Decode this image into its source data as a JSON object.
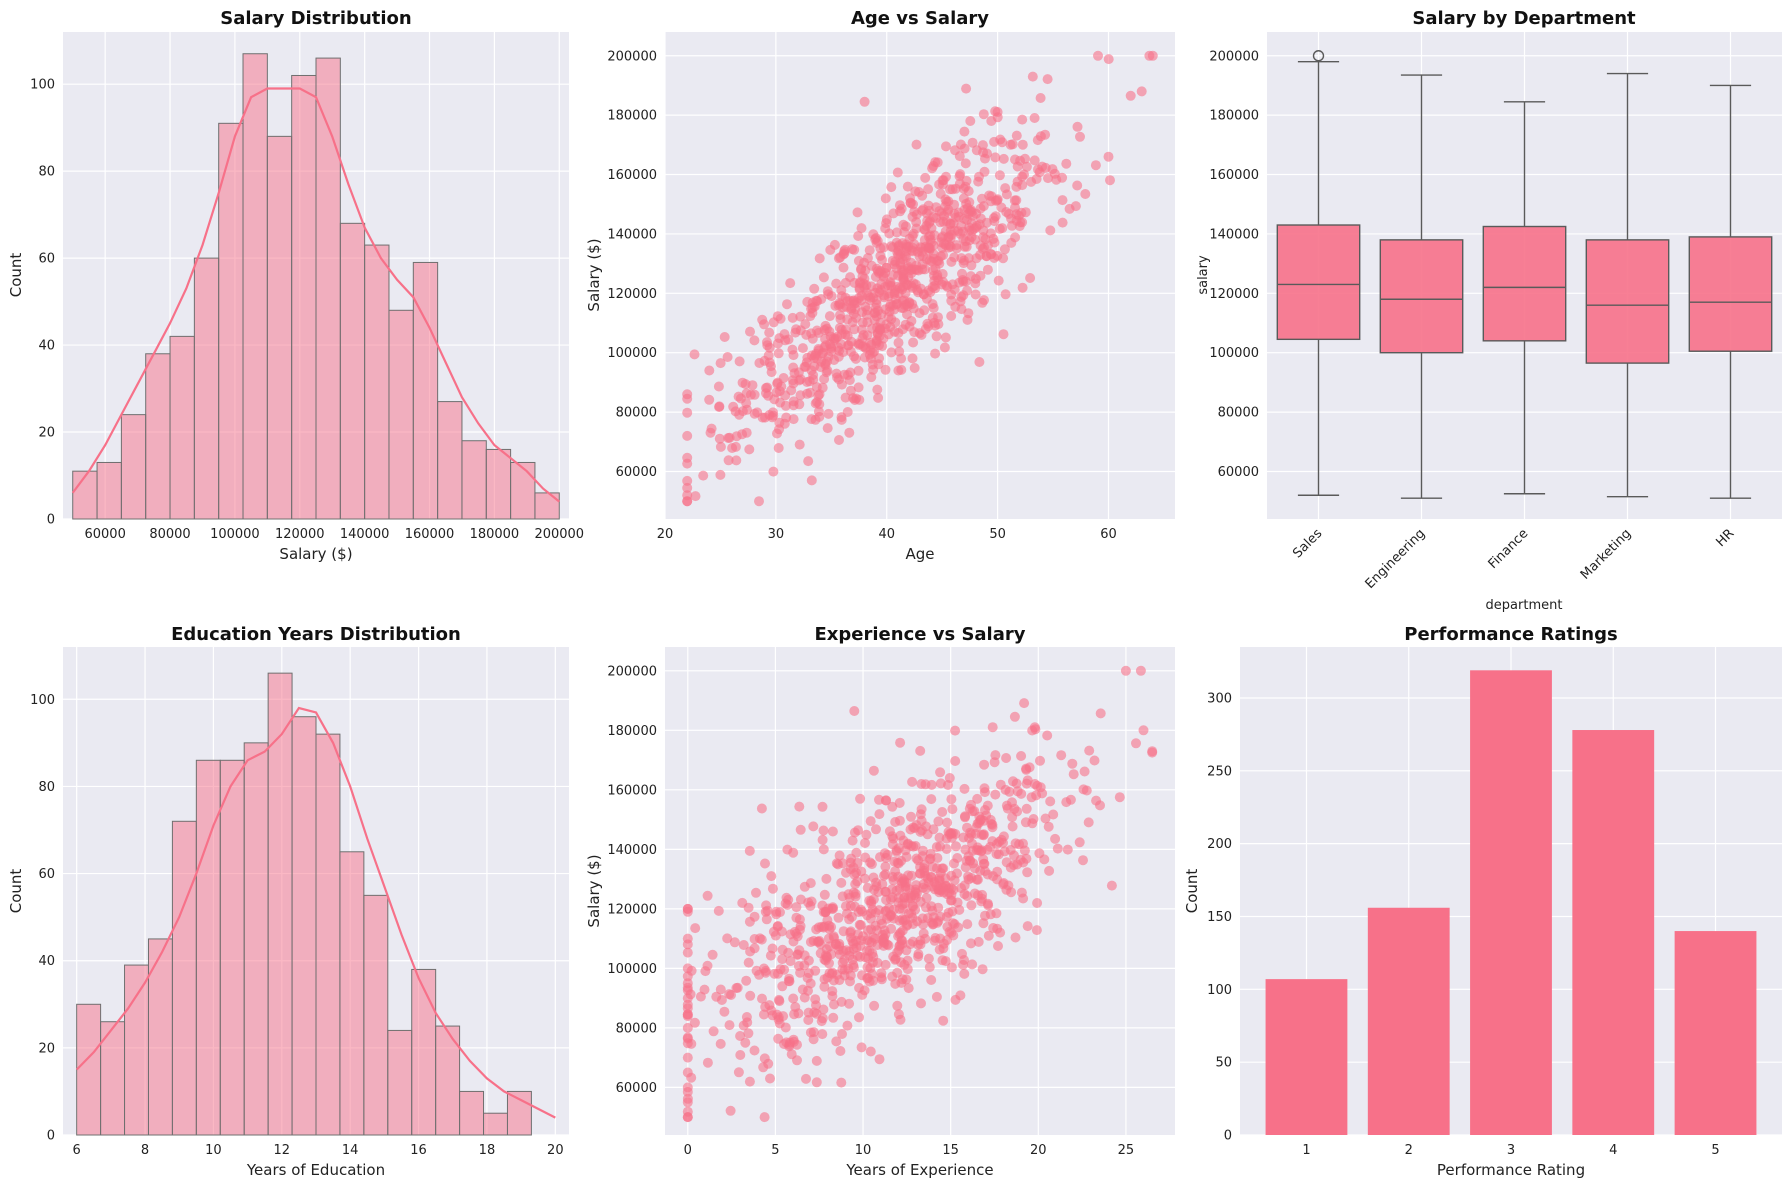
{
  "colors": {
    "accent": "#f77189",
    "plot_bg": "#eaeaf2",
    "grid": "#ffffff",
    "box_line": "#5a5a5a",
    "hist_edge": "#6f6f6f"
  },
  "chart_data": [
    {
      "type": "bar",
      "subtype": "histogram_with_kde",
      "title": "Salary Distribution",
      "xlabel": "Salary ($)",
      "ylabel": "Count",
      "xlim": [
        47000,
        203000
      ],
      "ylim": [
        0,
        112
      ],
      "xticks": [
        60000,
        80000,
        100000,
        120000,
        140000,
        160000,
        180000,
        200000
      ],
      "yticks": [
        0,
        20,
        40,
        60,
        80,
        100
      ],
      "bin_start": 50000,
      "bin_width": 7500,
      "values": [
        11,
        13,
        24,
        38,
        42,
        60,
        91,
        107,
        88,
        102,
        106,
        68,
        63,
        48,
        59,
        27,
        18,
        16,
        13,
        6
      ],
      "kde": [
        [
          50000,
          6
        ],
        [
          55000,
          11
        ],
        [
          60000,
          17
        ],
        [
          65000,
          24
        ],
        [
          70000,
          31
        ],
        [
          75000,
          38
        ],
        [
          80000,
          45
        ],
        [
          85000,
          53
        ],
        [
          90000,
          63
        ],
        [
          95000,
          75
        ],
        [
          100000,
          88
        ],
        [
          105000,
          97
        ],
        [
          110000,
          99
        ],
        [
          115000,
          99
        ],
        [
          120000,
          99
        ],
        [
          125000,
          97
        ],
        [
          130000,
          88
        ],
        [
          135000,
          77
        ],
        [
          140000,
          67
        ],
        [
          145000,
          60
        ],
        [
          150000,
          55
        ],
        [
          155000,
          51
        ],
        [
          160000,
          44
        ],
        [
          165000,
          36
        ],
        [
          170000,
          28
        ],
        [
          175000,
          22
        ],
        [
          180000,
          17
        ],
        [
          185000,
          14
        ],
        [
          190000,
          11
        ],
        [
          195000,
          7
        ],
        [
          200000,
          4
        ]
      ]
    },
    {
      "type": "scatter",
      "title": "Age vs Salary",
      "xlabel": "Age",
      "ylabel": "Salary ($)",
      "xlim": [
        20,
        66
      ],
      "ylim": [
        44000,
        208000
      ],
      "xticks": [
        20,
        30,
        40,
        50,
        60
      ],
      "yticks": [
        60000,
        80000,
        100000,
        120000,
        140000,
        160000,
        180000,
        200000
      ],
      "n_points": 900,
      "x_mean": 40,
      "x_sd": 7.5,
      "x_min": 22,
      "x_max": 64,
      "y_intercept": 4000,
      "y_slope": 2900,
      "y_noise_sd": 15000,
      "y_min": 50000,
      "y_max": 200000,
      "extra_points": [
        [
          22,
          52000
        ],
        [
          22,
          72000
        ],
        [
          22,
          84500
        ],
        [
          24,
          94000
        ],
        [
          38,
          184500
        ],
        [
          62,
          186500
        ],
        [
          63,
          188000
        ],
        [
          64,
          200000
        ],
        [
          60,
          166000
        ]
      ]
    },
    {
      "type": "box",
      "title": "Salary by Department",
      "xlabel": "department",
      "ylabel": "salary",
      "ylim": [
        44000,
        208000
      ],
      "yticks": [
        60000,
        80000,
        100000,
        120000,
        140000,
        160000,
        180000,
        200000
      ],
      "categories": [
        "Sales",
        "Engineering",
        "Finance",
        "Marketing",
        "HR"
      ],
      "boxes": [
        {
          "whisker_low": 52000,
          "q1": 104500,
          "median": 123000,
          "q3": 143000,
          "whisker_high": 198000,
          "outliers": [
            200000
          ]
        },
        {
          "whisker_low": 51000,
          "q1": 100000,
          "median": 118000,
          "q3": 138000,
          "whisker_high": 193500,
          "outliers": []
        },
        {
          "whisker_low": 52500,
          "q1": 104000,
          "median": 122000,
          "q3": 142500,
          "whisker_high": 184500,
          "outliers": []
        },
        {
          "whisker_low": 51500,
          "q1": 96500,
          "median": 116000,
          "q3": 138000,
          "whisker_high": 194000,
          "outliers": []
        },
        {
          "whisker_low": 51000,
          "q1": 100500,
          "median": 117000,
          "q3": 139000,
          "whisker_high": 190000,
          "outliers": []
        }
      ]
    },
    {
      "type": "bar",
      "subtype": "histogram_with_kde",
      "title": "Education Years Distribution",
      "xlabel": "Years of Education",
      "ylabel": "Count",
      "xlim": [
        5.6,
        20.4
      ],
      "ylim": [
        0,
        112
      ],
      "xticks": [
        6,
        8,
        10,
        12,
        14,
        16,
        18,
        20
      ],
      "yticks": [
        0,
        20,
        40,
        60,
        80,
        100
      ],
      "bin_start": 6,
      "bin_width": 0.7,
      "values": [
        30,
        26,
        39,
        45,
        72,
        86,
        86,
        90,
        106,
        96,
        92,
        65,
        55,
        24,
        38,
        25,
        10,
        5,
        10
      ],
      "kde": [
        [
          6,
          15
        ],
        [
          6.5,
          19
        ],
        [
          7,
          24
        ],
        [
          7.5,
          29
        ],
        [
          8,
          35
        ],
        [
          8.5,
          42
        ],
        [
          9,
          50
        ],
        [
          9.5,
          60
        ],
        [
          10,
          71
        ],
        [
          10.5,
          80
        ],
        [
          11,
          86
        ],
        [
          11.5,
          88
        ],
        [
          12,
          92
        ],
        [
          12.5,
          98
        ],
        [
          13,
          97
        ],
        [
          13.5,
          90
        ],
        [
          14,
          80
        ],
        [
          14.5,
          68
        ],
        [
          15,
          57
        ],
        [
          15.5,
          46
        ],
        [
          16,
          36
        ],
        [
          16.5,
          28
        ],
        [
          17,
          22
        ],
        [
          17.5,
          17
        ],
        [
          18,
          13
        ],
        [
          18.5,
          10
        ],
        [
          19,
          8
        ],
        [
          19.5,
          6
        ],
        [
          20,
          4
        ]
      ]
    },
    {
      "type": "scatter",
      "title": "Experience vs Salary",
      "xlabel": "Years of Experience",
      "ylabel": "Salary ($)",
      "xlim": [
        -1.3,
        27.8
      ],
      "ylim": [
        44000,
        208000
      ],
      "xticks": [
        0,
        5,
        10,
        15,
        20,
        25
      ],
      "yticks": [
        60000,
        80000,
        100000,
        120000,
        140000,
        160000,
        180000,
        200000
      ],
      "n_points": 900,
      "x_mean": 11.5,
      "x_sd": 5.5,
      "x_min": 0,
      "x_max": 26.5,
      "y_intercept": 80000,
      "y_slope": 3500,
      "y_noise_sd": 18000,
      "y_min": 50000,
      "y_max": 200000,
      "extra_points": [
        [
          0,
          50000
        ],
        [
          0,
          55000
        ],
        [
          0,
          60000
        ],
        [
          0,
          65000
        ],
        [
          0,
          70000
        ],
        [
          0,
          80000
        ],
        [
          0,
          90000
        ],
        [
          0,
          100000
        ],
        [
          0,
          110000
        ],
        [
          0,
          120000
        ],
        [
          0,
          119000
        ],
        [
          9.5,
          186500
        ],
        [
          25,
          200000
        ],
        [
          26,
          180000
        ],
        [
          26.5,
          172500
        ]
      ]
    },
    {
      "type": "bar",
      "title": "Performance Ratings",
      "xlabel": "Performance Rating",
      "ylabel": "Count",
      "xlim": [
        0.35,
        5.65
      ],
      "ylim": [
        0,
        335
      ],
      "yticks": [
        0,
        50,
        100,
        150,
        200,
        250,
        300
      ],
      "categories": [
        "1",
        "2",
        "3",
        "4",
        "5"
      ],
      "values": [
        107,
        156,
        319,
        278,
        140
      ]
    }
  ]
}
